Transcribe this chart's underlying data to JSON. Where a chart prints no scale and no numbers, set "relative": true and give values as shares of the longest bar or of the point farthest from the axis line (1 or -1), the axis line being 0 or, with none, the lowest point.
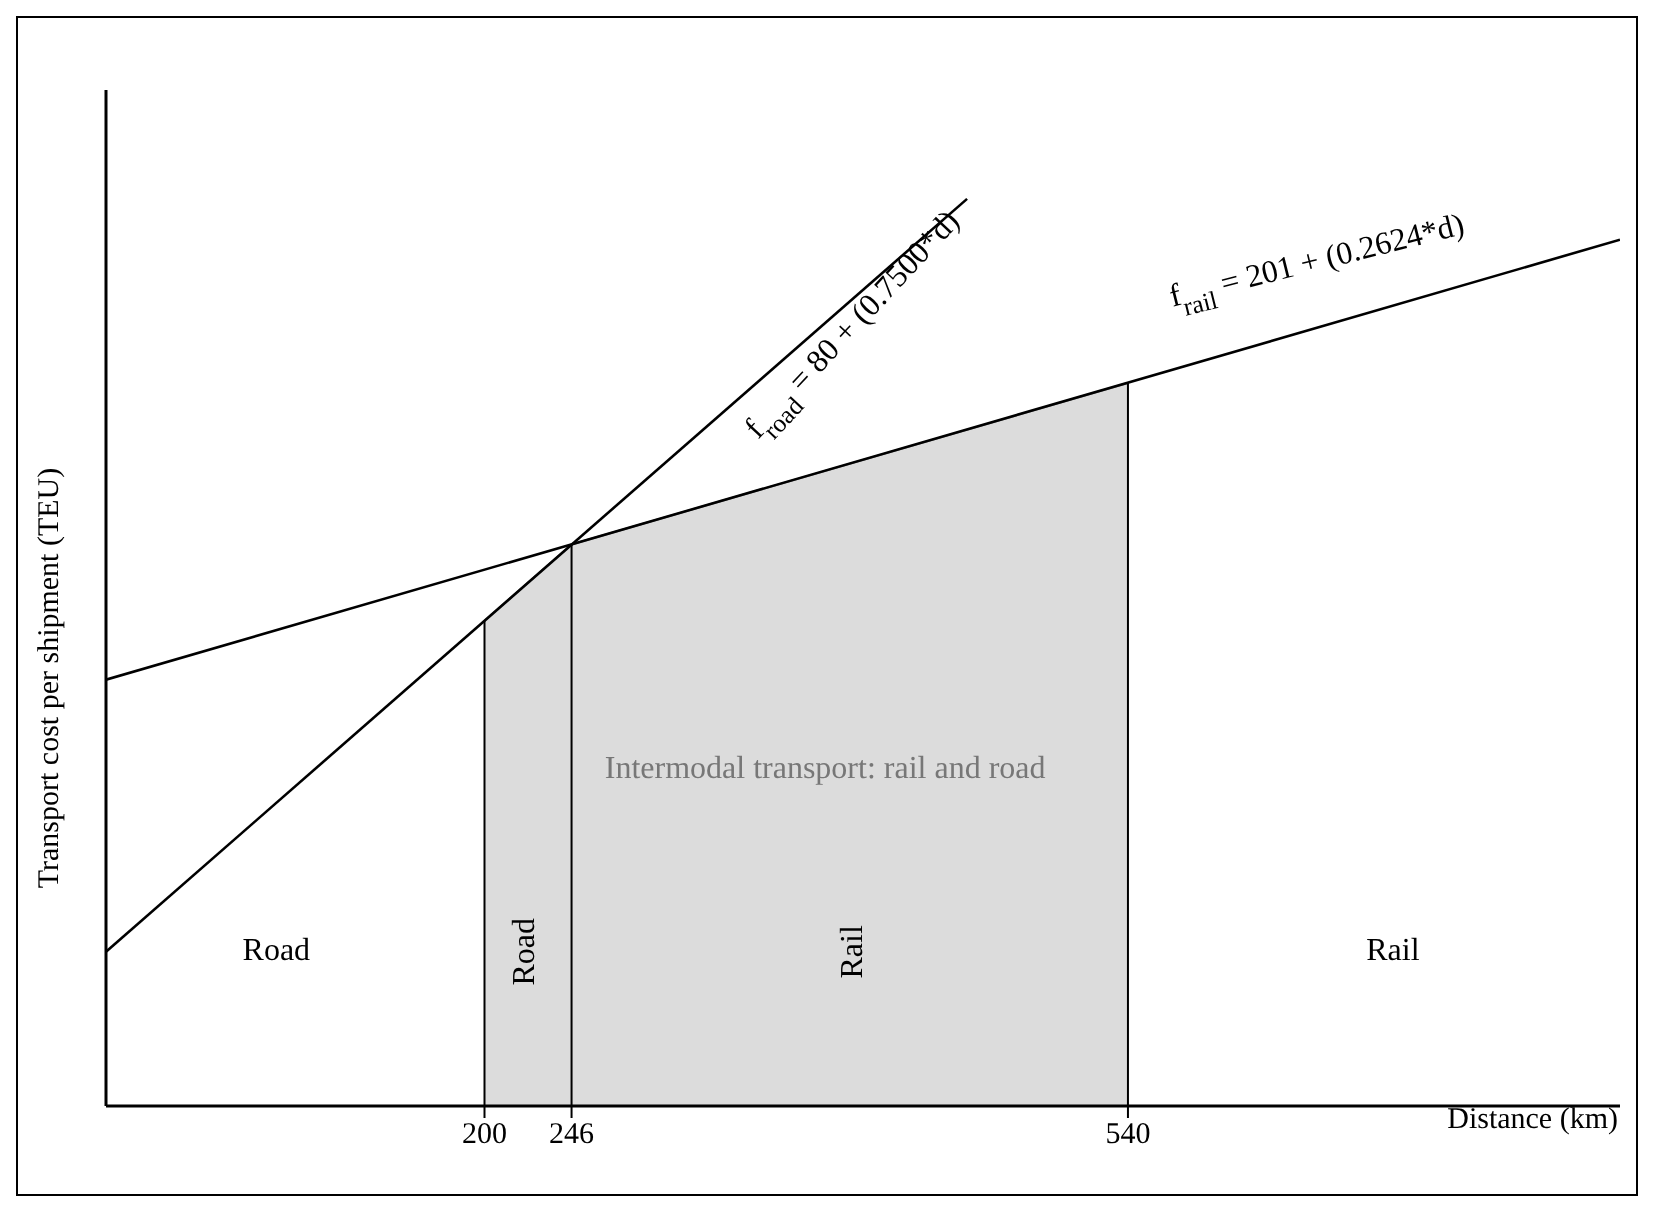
{
  "chart_data": {
    "type": "line",
    "relative": true,
    "xlabel": "Distance (km)",
    "ylabel": "Transport cost per shipment (TEU)",
    "xlim": [
      0,
      800
    ],
    "xticks": [
      200,
      246,
      540
    ],
    "marker": "none",
    "ref_lines": [
      {
        "axis": "x",
        "value": 200
      },
      {
        "axis": "x",
        "value": 246
      },
      {
        "axis": "x",
        "value": 540
      }
    ],
    "series": [
      {
        "color": "#000000",
        "x": [
          0,
          455
        ],
        "values": [
          0.17,
          1
        ]
      },
      {
        "color": "#000000",
        "x": [
          0,
          800
        ],
        "values": [
          0.47,
          0.955
        ]
      },
      {
        "type": "area",
        "color": "#dcdcdc",
        "x": [
          200,
          246,
          540
        ],
        "values": [
          0.535,
          0.619,
          0.797
        ]
      }
    ],
    "annotations": [
      "f$_{road}$ = 80 + (0.7500*d)",
      "f$_{rail}$ = 201 + (0.2624*d)",
      "Road",
      "Road",
      "Rail",
      "Rail",
      "Intermodal transport: rail and road"
    ]
  }
}
